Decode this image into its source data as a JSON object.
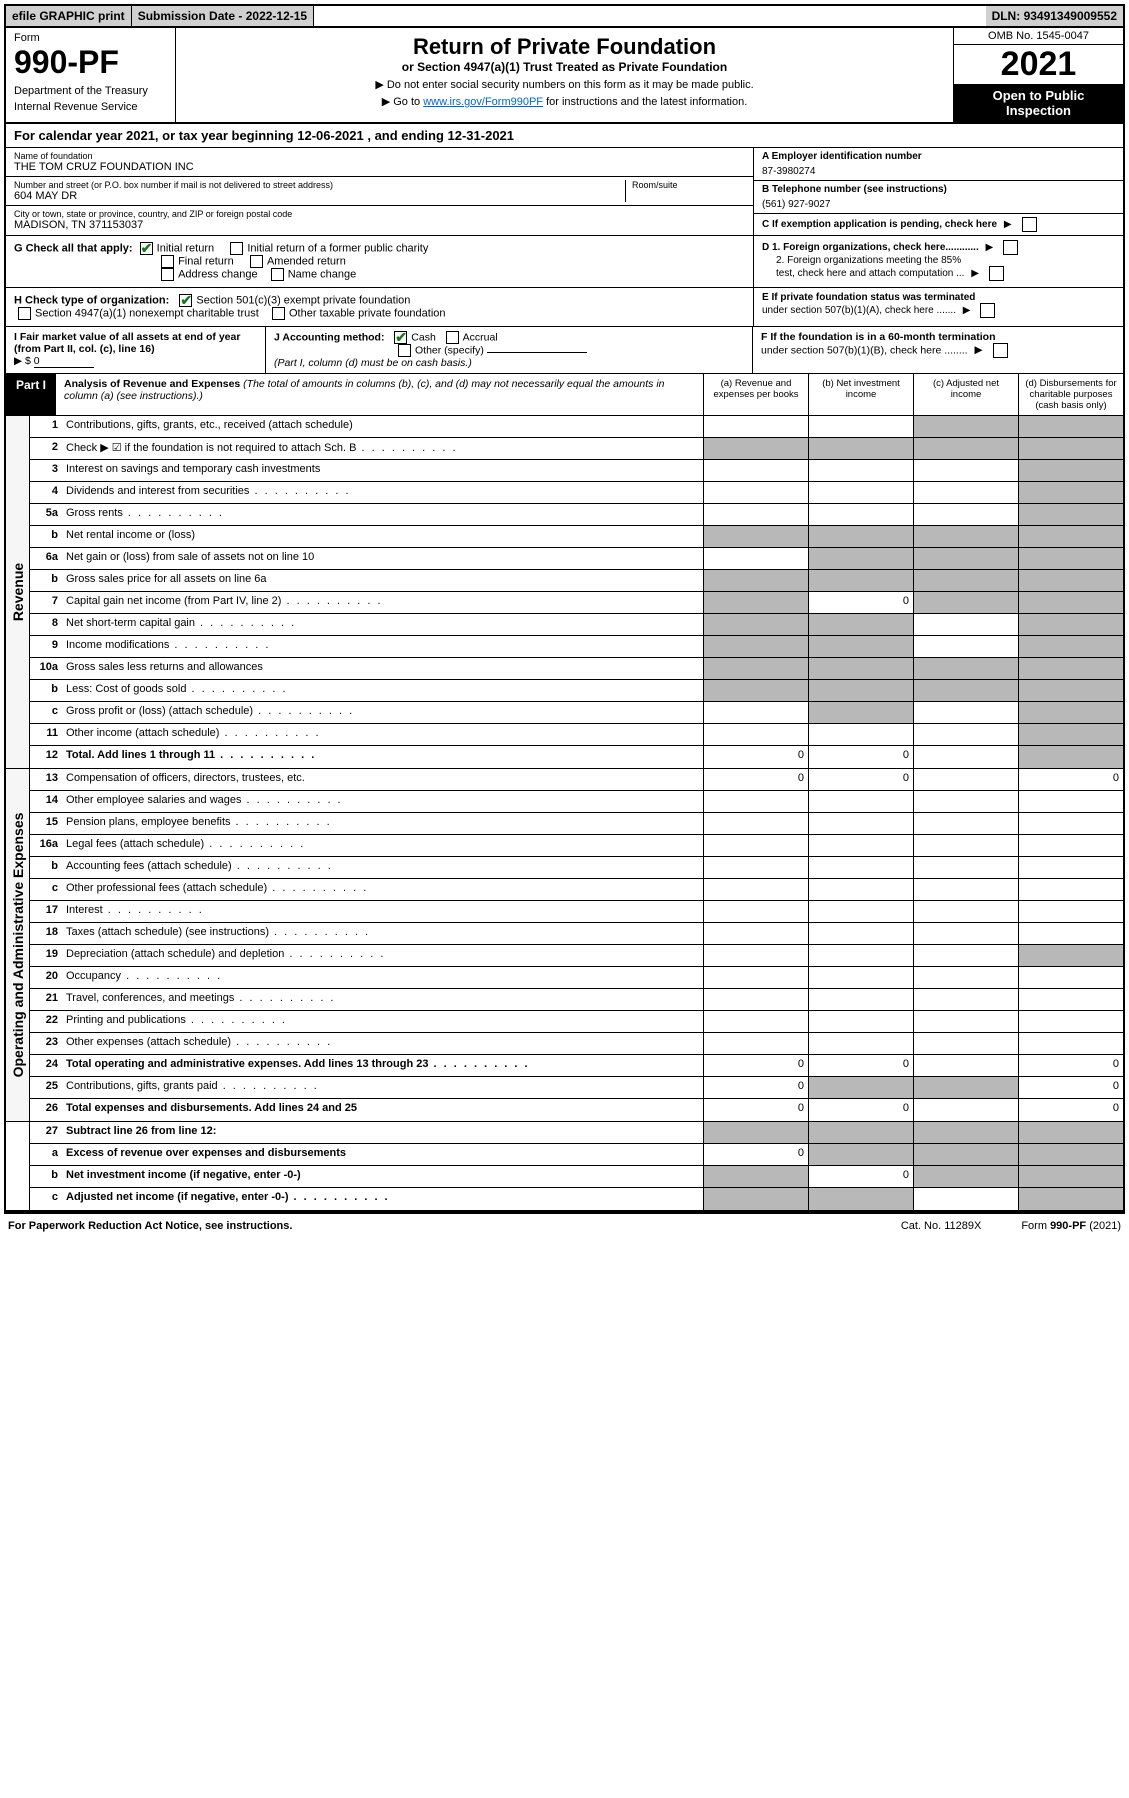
{
  "topbar": {
    "efile": "efile GRAPHIC print",
    "subdate_lbl": "Submission Date - ",
    "subdate": "2022-12-15",
    "dln_lbl": "DLN: ",
    "dln": "93491349009552"
  },
  "header": {
    "form_lbl": "Form",
    "form_no": "990-PF",
    "dept1": "Department of the Treasury",
    "dept2": "Internal Revenue Service",
    "title": "Return of Private Foundation",
    "subtitle": "or Section 4947(a)(1) Trust Treated as Private Foundation",
    "note1": "▶ Do not enter social security numbers on this form as it may be made public.",
    "note2_a": "▶ Go to ",
    "note2_link": "www.irs.gov/Form990PF",
    "note2_b": " for instructions and the latest information.",
    "omb": "OMB No. 1545-0047",
    "year": "2021",
    "open1": "Open to Public",
    "open2": "Inspection"
  },
  "calyear": {
    "a": "For calendar year 2021, or tax year beginning ",
    "begin": "12-06-2021",
    "b": " , and ending ",
    "end": "12-31-2021"
  },
  "id": {
    "name_lbl": "Name of foundation",
    "name": "THE TOM CRUZ FOUNDATION INC",
    "addr_lbl": "Number and street (or P.O. box number if mail is not delivered to street address)",
    "addr": "604 MAY DR",
    "room_lbl": "Room/suite",
    "city_lbl": "City or town, state or province, country, and ZIP or foreign postal code",
    "city": "MADISON, TN  371153037",
    "ein_lbl": "A Employer identification number",
    "ein": "87-3980274",
    "tel_lbl": "B Telephone number (see instructions)",
    "tel": "(561) 927-9027",
    "c": "C If exemption application is pending, check here",
    "d1": "D 1. Foreign organizations, check here............",
    "d2a": "2. Foreign organizations meeting the 85%",
    "d2b": "test, check here and attach computation ...",
    "e1": "E  If private foundation status was terminated",
    "e2": "under section 507(b)(1)(A), check here .......",
    "f1": "F  If the foundation is in a 60-month termination",
    "f2": "under section 507(b)(1)(B), check here ........"
  },
  "g": {
    "lbl": "G Check all that apply:",
    "o1": "Initial return",
    "o2": "Initial return of a former public charity",
    "o3": "Final return",
    "o4": "Amended return",
    "o5": "Address change",
    "o6": "Name change"
  },
  "h": {
    "lbl": "H Check type of organization:",
    "o1": "Section 501(c)(3) exempt private foundation",
    "o2": "Section 4947(a)(1) nonexempt charitable trust",
    "o3": "Other taxable private foundation"
  },
  "i": {
    "lbl": "I Fair market value of all assets at end of year (from Part II, col. (c), line 16)",
    "arrow": "▶ $",
    "val": "0"
  },
  "j": {
    "lbl": "J Accounting method:",
    "o1": "Cash",
    "o2": "Accrual",
    "o3": "Other (specify)",
    "note": "(Part I, column (d) must be on cash basis.)"
  },
  "part1": {
    "tag": "Part I",
    "title": "Analysis of Revenue and Expenses",
    "title_note": " (The total of amounts in columns (b), (c), and (d) may not necessarily equal the amounts in column (a) (see instructions).)",
    "colA": "(a)   Revenue and expenses per books",
    "colB": "(b)    Net investment income",
    "colC": "(c)   Adjusted net income",
    "colD": "(d)   Disbursements for charitable purposes (cash basis only)"
  },
  "sidelabels": {
    "rev": "Revenue",
    "exp": "Operating and Administrative Expenses"
  },
  "revrows": [
    {
      "n": "1",
      "d": "Contributions, gifts, grants, etc., received (attach schedule)",
      "shadeC": true,
      "shadeD": true
    },
    {
      "n": "2",
      "d": "Check ▶ ☑ if the foundation is not required to attach Sch. B",
      "dots": true,
      "allshade": true
    },
    {
      "n": "3",
      "d": "Interest on savings and temporary cash investments",
      "shadeD": true
    },
    {
      "n": "4",
      "d": "Dividends and interest from securities",
      "dots": true,
      "shadeD": true
    },
    {
      "n": "5a",
      "d": "Gross rents",
      "dots": true,
      "shadeD": true
    },
    {
      "n": "b",
      "d": "Net rental income or (loss)",
      "allshade": true
    },
    {
      "n": "6a",
      "d": "Net gain or (loss) from sale of assets not on line 10",
      "shadeB": true,
      "shadeC": true,
      "shadeD": true
    },
    {
      "n": "b",
      "d": "Gross sales price for all assets on line 6a",
      "allshade": true
    },
    {
      "n": "7",
      "d": "Capital gain net income (from Part IV, line 2)",
      "dots": true,
      "shadeA": true,
      "b": "0",
      "shadeC": true,
      "shadeD": true
    },
    {
      "n": "8",
      "d": "Net short-term capital gain",
      "dots": true,
      "shadeA": true,
      "shadeB": true,
      "shadeD": true
    },
    {
      "n": "9",
      "d": "Income modifications",
      "dots": true,
      "shadeA": true,
      "shadeB": true,
      "shadeD": true
    },
    {
      "n": "10a",
      "d": "Gross sales less returns and allowances",
      "allshade": true
    },
    {
      "n": "b",
      "d": "Less: Cost of goods sold",
      "dots": true,
      "allshade": true
    },
    {
      "n": "c",
      "d": "Gross profit or (loss) (attach schedule)",
      "dots": true,
      "shadeB": true,
      "shadeD": true
    },
    {
      "n": "11",
      "d": "Other income (attach schedule)",
      "dots": true,
      "shadeD": true
    },
    {
      "n": "12",
      "d": "Total. Add lines 1 through 11",
      "dots": true,
      "bold": true,
      "a": "0",
      "b": "0",
      "shadeD": true
    }
  ],
  "exprows": [
    {
      "n": "13",
      "d": "Compensation of officers, directors, trustees, etc.",
      "a": "0",
      "b": "0",
      "dval": "0"
    },
    {
      "n": "14",
      "d": "Other employee salaries and wages",
      "dots": true
    },
    {
      "n": "15",
      "d": "Pension plans, employee benefits",
      "dots": true
    },
    {
      "n": "16a",
      "d": "Legal fees (attach schedule)",
      "dots": true
    },
    {
      "n": "b",
      "d": "Accounting fees (attach schedule)",
      "dots": true
    },
    {
      "n": "c",
      "d": "Other professional fees (attach schedule)",
      "dots": true
    },
    {
      "n": "17",
      "d": "Interest",
      "dots": true
    },
    {
      "n": "18",
      "d": "Taxes (attach schedule) (see instructions)",
      "dots": true
    },
    {
      "n": "19",
      "d": "Depreciation (attach schedule) and depletion",
      "dots": true,
      "shadeD": true
    },
    {
      "n": "20",
      "d": "Occupancy",
      "dots": true
    },
    {
      "n": "21",
      "d": "Travel, conferences, and meetings",
      "dots": true
    },
    {
      "n": "22",
      "d": "Printing and publications",
      "dots": true
    },
    {
      "n": "23",
      "d": "Other expenses (attach schedule)",
      "dots": true
    },
    {
      "n": "24",
      "d": "Total operating and administrative expenses. Add lines 13 through 23",
      "dots": true,
      "bold": true,
      "a": "0",
      "b": "0",
      "dval": "0"
    },
    {
      "n": "25",
      "d": "Contributions, gifts, grants paid",
      "dots": true,
      "a": "0",
      "shadeB": true,
      "shadeC": true,
      "dval": "0"
    },
    {
      "n": "26",
      "d": "Total expenses and disbursements. Add lines 24 and 25",
      "bold": true,
      "a": "0",
      "b": "0",
      "dval": "0"
    }
  ],
  "netrows": [
    {
      "n": "27",
      "d": "Subtract line 26 from line 12:",
      "bold": true,
      "allshade": true
    },
    {
      "n": "a",
      "d": "Excess of revenue over expenses and disbursements",
      "bold": true,
      "a": "0",
      "shadeB": true,
      "shadeC": true,
      "shadeD": true
    },
    {
      "n": "b",
      "d": "Net investment income (if negative, enter -0-)",
      "bold": true,
      "shadeA": true,
      "b": "0",
      "shadeC": true,
      "shadeD": true
    },
    {
      "n": "c",
      "d": "Adjusted net income (if negative, enter -0-)",
      "bold": true,
      "dots": true,
      "shadeA": true,
      "shadeB": true,
      "shadeD": true
    }
  ],
  "footer": {
    "left": "For Paperwork Reduction Act Notice, see instructions.",
    "mid": "Cat. No. 11289X",
    "right": "Form 990-PF (2021)"
  },
  "colors": {
    "shade": "#b8b8b8",
    "link": "#0066cc",
    "check": "#1a7a1a"
  }
}
